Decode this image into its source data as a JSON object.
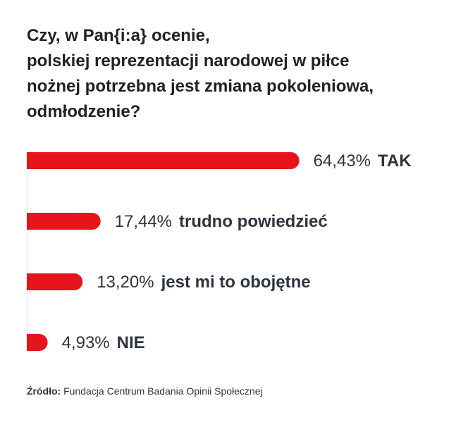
{
  "title_lines": [
    "Czy, w Pan{i:a} ocenie,",
    "polskiej reprezentacji narodowej w piłce",
    "nożnej potrzebna jest zmiana pokoleniowa,",
    "odmłodzenie?"
  ],
  "source": {
    "label": "Źródło:",
    "text": "Fundacja Centrum Badania Opinii Społecznej"
  },
  "colors": {
    "bar": "#e8141b",
    "axis": "#d9e4ea",
    "value_text": "#333333",
    "category_text": "#2d3440"
  },
  "chart_data": {
    "type": "bar",
    "orientation": "horizontal",
    "categories": [
      "TAK",
      "trudno powiedzieć",
      "jest mi to obojętne",
      "NIE"
    ],
    "values": [
      64.43,
      17.44,
      13.2,
      4.93
    ],
    "value_labels": [
      "64,43%",
      "17,44%",
      "13,20%",
      "4,93%"
    ],
    "xlim": [
      0,
      100
    ],
    "grid": false,
    "legend": "none"
  }
}
